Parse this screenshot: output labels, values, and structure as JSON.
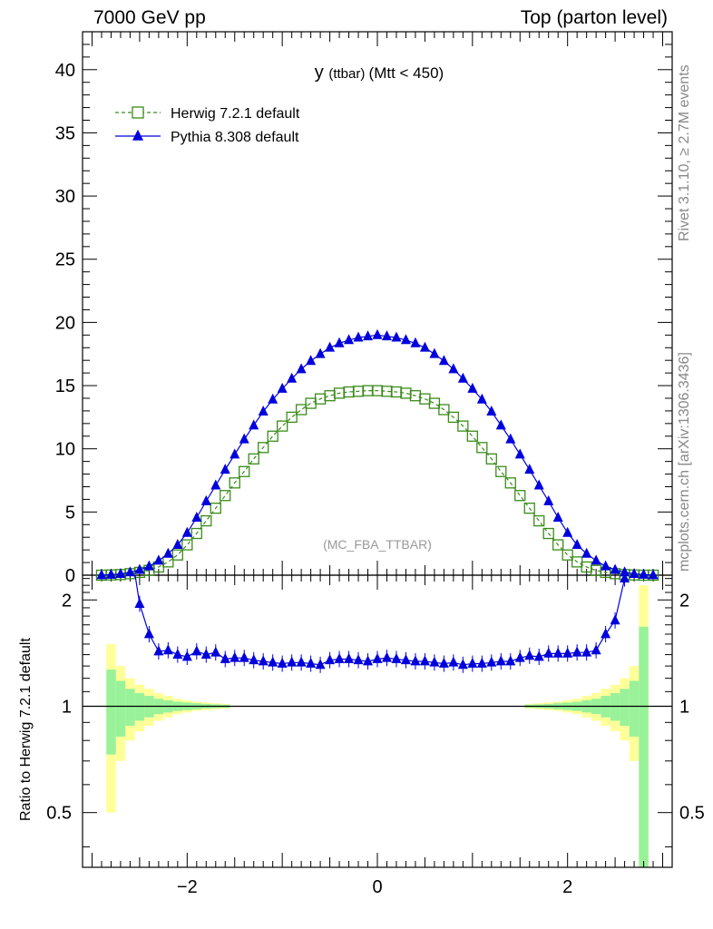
{
  "header": {
    "left": "7000 GeV pp",
    "right": "Top (parton level)"
  },
  "side_labels": {
    "rivet": "Rivet 3.1.10, ≥ 2.7M events",
    "mcplots": "mcplots.cern.ch [arXiv:1306.3436]"
  },
  "colors": {
    "herwig": "#3a8c1a",
    "pythia": "#0000dd",
    "band_inner": "#99f299",
    "band_outer": "#ffff99"
  },
  "chart_data": [
    {
      "type": "line",
      "title_main": "y",
      "title_sub": "(ttbar)",
      "title_cut": "(Mtt < 450)",
      "watermark": "(MC_FBA_TTBAR)",
      "xlim": [
        -3.1,
        3.1
      ],
      "ylim": [
        0,
        43
      ],
      "yticks": [
        0,
        5,
        10,
        15,
        20,
        25,
        30,
        35,
        40
      ],
      "xticks": [
        -2,
        0,
        2
      ],
      "legend_position": "top-left",
      "x": [
        -2.9,
        -2.8,
        -2.7,
        -2.6,
        -2.5,
        -2.4,
        -2.3,
        -2.2,
        -2.1,
        -2.0,
        -1.9,
        -1.8,
        -1.7,
        -1.6,
        -1.5,
        -1.4,
        -1.3,
        -1.2,
        -1.1,
        -1.0,
        -0.9,
        -0.8,
        -0.7,
        -0.6,
        -0.5,
        -0.4,
        -0.3,
        -0.2,
        -0.1,
        0.0,
        0.1,
        0.2,
        0.3,
        0.4,
        0.5,
        0.6,
        0.7,
        0.8,
        0.9,
        1.0,
        1.1,
        1.2,
        1.3,
        1.4,
        1.5,
        1.6,
        1.7,
        1.8,
        1.9,
        2.0,
        2.1,
        2.2,
        2.3,
        2.4,
        2.5,
        2.6,
        2.7,
        2.8,
        2.9
      ],
      "series": [
        {
          "name": "Herwig 7.2.1 default",
          "marker": "open-square",
          "line": "dashed",
          "values": [
            0.0,
            0.02,
            0.05,
            0.12,
            0.22,
            0.38,
            0.65,
            1.05,
            1.6,
            2.4,
            3.3,
            4.3,
            5.3,
            6.3,
            7.3,
            8.2,
            9.2,
            10.1,
            11.0,
            11.8,
            12.5,
            13.1,
            13.6,
            13.95,
            14.2,
            14.4,
            14.5,
            14.55,
            14.6,
            14.6,
            14.55,
            14.5,
            14.4,
            14.2,
            13.95,
            13.6,
            13.1,
            12.5,
            11.8,
            11.0,
            10.1,
            9.2,
            8.2,
            7.3,
            6.3,
            5.3,
            4.3,
            3.3,
            2.4,
            1.6,
            1.05,
            0.65,
            0.38,
            0.22,
            0.12,
            0.05,
            0.02,
            0.0,
            0.0
          ]
        },
        {
          "name": "Pythia 8.308 default",
          "marker": "filled-triangle",
          "line": "solid",
          "values": [
            0.0,
            0.04,
            0.1,
            0.23,
            0.42,
            0.7,
            1.15,
            1.7,
            2.4,
            3.35,
            4.55,
            5.85,
            7.1,
            8.35,
            9.55,
            10.75,
            11.85,
            12.95,
            13.9,
            14.75,
            15.55,
            16.3,
            16.95,
            17.5,
            18.0,
            18.35,
            18.6,
            18.8,
            18.9,
            19.0,
            18.9,
            18.8,
            18.6,
            18.35,
            18.0,
            17.5,
            16.95,
            16.3,
            15.55,
            14.75,
            13.9,
            12.95,
            11.85,
            10.75,
            9.55,
            8.35,
            7.1,
            5.85,
            4.55,
            3.35,
            2.4,
            1.7,
            1.15,
            0.7,
            0.42,
            0.23,
            0.1,
            0.04,
            0.0
          ]
        }
      ]
    },
    {
      "type": "line",
      "ylabel": "Ratio to Herwig 7.2.1 default",
      "ylim": [
        0.35,
        2.35
      ],
      "scale": "log",
      "yticks": [
        0.5,
        1,
        2
      ],
      "right_ticks": [
        "2",
        "1",
        "0.5"
      ],
      "xlim": [
        -3.1,
        3.1
      ],
      "reference": 1,
      "band_x": [
        -2.8,
        -2.7,
        -2.6,
        -2.5,
        -2.4,
        -2.3,
        -2.2,
        -2.1,
        -2.0,
        -1.9,
        -1.8,
        -1.7,
        -1.6,
        1.6,
        1.7,
        1.8,
        1.9,
        2.0,
        2.1,
        2.2,
        2.3,
        2.4,
        2.5,
        2.6,
        2.7,
        2.8
      ],
      "band_inner_half": [
        0.27,
        0.18,
        0.12,
        0.09,
        0.07,
        0.05,
        0.04,
        0.03,
        0.025,
        0.02,
        0.015,
        0.012,
        0.01,
        0.01,
        0.012,
        0.015,
        0.02,
        0.025,
        0.03,
        0.04,
        0.05,
        0.07,
        0.09,
        0.12,
        0.18,
        0.68
      ],
      "band_outer_half": [
        0.5,
        0.3,
        0.2,
        0.15,
        0.12,
        0.09,
        0.07,
        0.05,
        0.04,
        0.03,
        0.025,
        0.02,
        0.015,
        0.015,
        0.02,
        0.025,
        0.03,
        0.04,
        0.05,
        0.07,
        0.09,
        0.12,
        0.15,
        0.2,
        0.3,
        1.2
      ],
      "series": [
        {
          "name": "Pythia 8.308 default",
          "x": [
            -2.6,
            -2.5,
            -2.4,
            -2.3,
            -2.2,
            -2.1,
            -2.0,
            -1.9,
            -1.8,
            -1.7,
            -1.6,
            -1.5,
            -1.4,
            -1.3,
            -1.2,
            -1.1,
            -1.0,
            -0.9,
            -0.8,
            -0.7,
            -0.6,
            -0.5,
            -0.4,
            -0.3,
            -0.2,
            -0.1,
            0.0,
            0.1,
            0.2,
            0.3,
            0.4,
            0.5,
            0.6,
            0.7,
            0.8,
            0.9,
            1.0,
            1.1,
            1.2,
            1.3,
            1.4,
            1.5,
            1.6,
            1.7,
            1.8,
            1.9,
            2.0,
            2.1,
            2.2,
            2.3,
            2.4,
            2.5,
            2.6
          ],
          "values": [
            2.9,
            1.95,
            1.6,
            1.43,
            1.44,
            1.4,
            1.38,
            1.43,
            1.4,
            1.42,
            1.36,
            1.37,
            1.37,
            1.35,
            1.34,
            1.33,
            1.32,
            1.33,
            1.33,
            1.32,
            1.31,
            1.35,
            1.36,
            1.36,
            1.35,
            1.34,
            1.36,
            1.37,
            1.36,
            1.35,
            1.34,
            1.34,
            1.33,
            1.32,
            1.33,
            1.31,
            1.32,
            1.32,
            1.33,
            1.34,
            1.34,
            1.37,
            1.39,
            1.38,
            1.41,
            1.41,
            1.41,
            1.42,
            1.42,
            1.44,
            1.6,
            1.75,
            2.3
          ]
        }
      ]
    }
  ]
}
